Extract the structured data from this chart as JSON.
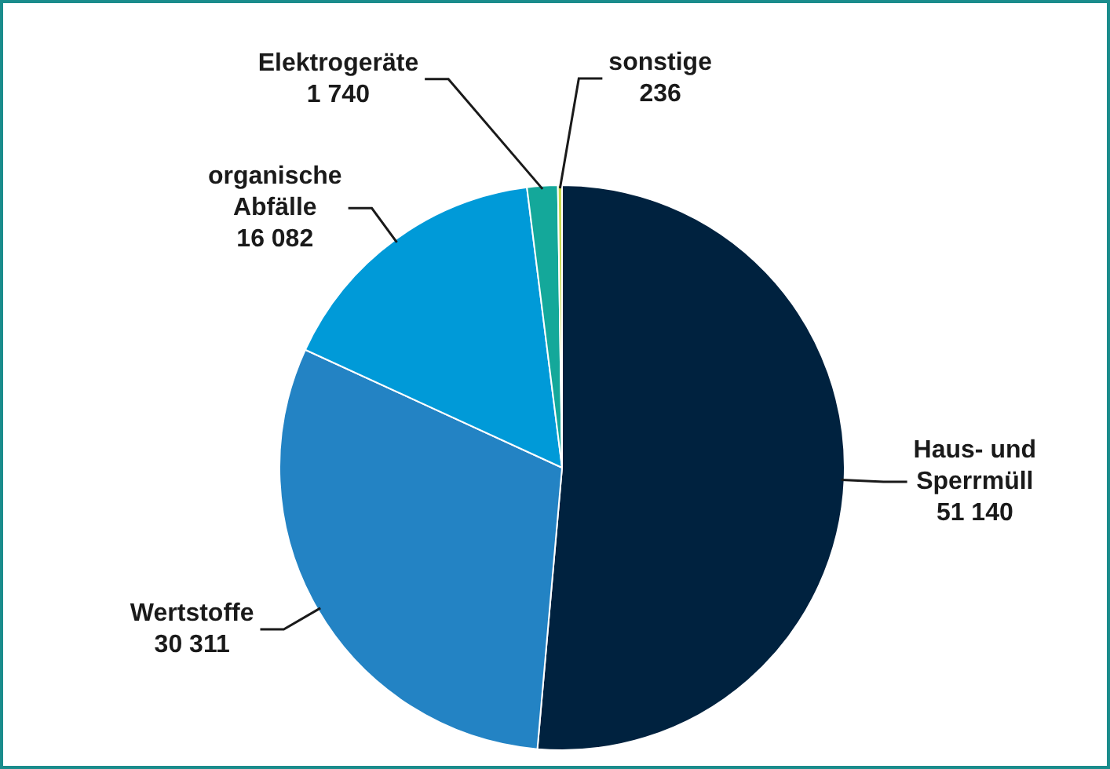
{
  "chart_data": {
    "type": "pie",
    "categories": [
      "Haus- und Sperrmüll",
      "Wertstoffe",
      "organische Abfälle",
      "Elektrogeräte",
      "sonstige"
    ],
    "values": [
      51140,
      30311,
      16082,
      1740,
      236
    ],
    "value_labels": [
      "51 140",
      "30 311",
      "16 082",
      "1 740",
      "236"
    ],
    "colors": [
      "#00223f",
      "#2383c4",
      "#009ad8",
      "#14a89a",
      "#c8d84a"
    ],
    "legend": false
  }
}
